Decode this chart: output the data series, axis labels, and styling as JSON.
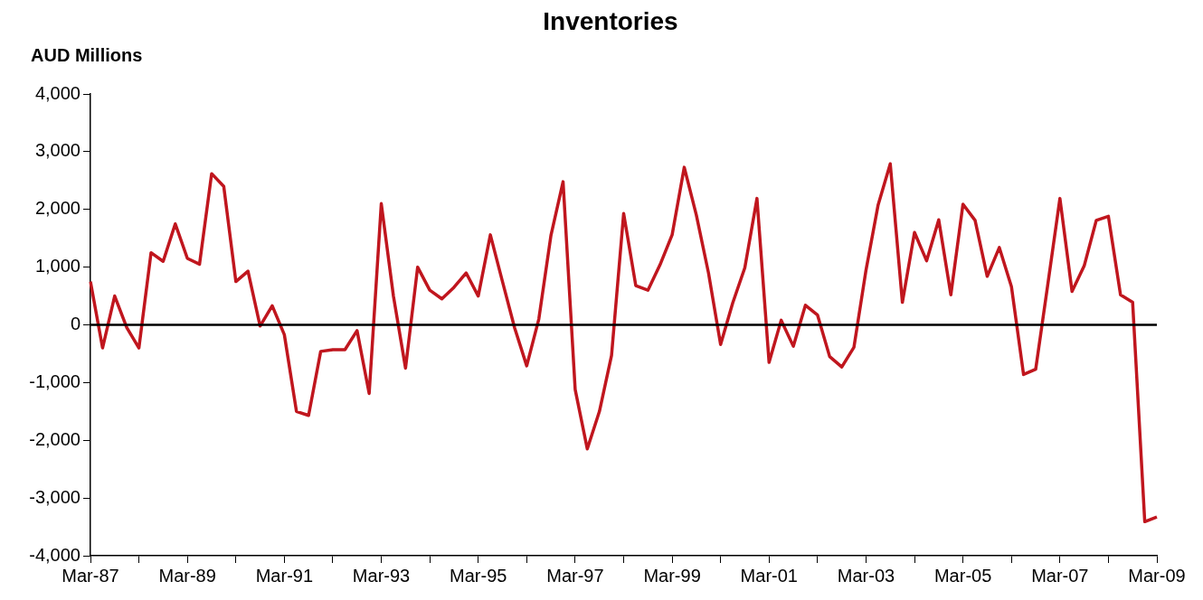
{
  "chart_data": {
    "type": "line",
    "title": "Inventories",
    "ylabel": "AUD Millions",
    "categories": [
      "Mar-87",
      null,
      null,
      null,
      null,
      null,
      null,
      null,
      "Mar-89",
      null,
      null,
      null,
      null,
      null,
      null,
      null,
      "Mar-91",
      null,
      null,
      null,
      null,
      null,
      null,
      null,
      "Mar-93",
      null,
      null,
      null,
      null,
      null,
      null,
      null,
      "Mar-95",
      null,
      null,
      null,
      null,
      null,
      null,
      null,
      "Mar-97",
      null,
      null,
      null,
      null,
      null,
      null,
      null,
      "Mar-99",
      null,
      null,
      null,
      null,
      null,
      null,
      null,
      "Mar-01",
      null,
      null,
      null,
      null,
      null,
      null,
      null,
      "Mar-03",
      null,
      null,
      null,
      null,
      null,
      null,
      null,
      "Mar-05",
      null,
      null,
      null,
      null,
      null,
      null,
      null,
      "Mar-07",
      null,
      null,
      null,
      null,
      null,
      null,
      null,
      "Mar-09"
    ],
    "series": [
      {
        "color": "#c0161e",
        "values": [
          750,
          -400,
          500,
          -50,
          -400,
          1250,
          1100,
          1750,
          1150,
          1050,
          2620,
          2400,
          750,
          930,
          -20,
          330,
          -170,
          -1500,
          -1570,
          -460,
          -430,
          -430,
          -100,
          -1190,
          2100,
          500,
          -750,
          1000,
          600,
          450,
          650,
          900,
          500,
          1560,
          750,
          -50,
          -710,
          100,
          1550,
          2480,
          -1120,
          -2150,
          -1500,
          -530,
          1930,
          680,
          600,
          1040,
          1560,
          2730,
          1900,
          900,
          -340,
          380,
          990,
          2190,
          -650,
          80,
          -370,
          340,
          170,
          -550,
          -730,
          -390,
          950,
          2080,
          2790,
          390,
          1600,
          1110,
          1820,
          520,
          2090,
          1810,
          840,
          1340,
          660,
          -860,
          -770,
          700,
          2190,
          580,
          1020,
          1810,
          1880,
          520,
          390,
          -3410,
          -3330
        ]
      }
    ],
    "ylim": [
      -4000,
      4000
    ],
    "yticks": [
      {
        "value": -4000,
        "label": "-4,000"
      },
      {
        "value": -3000,
        "label": "-3,000"
      },
      {
        "value": -2000,
        "label": "-2,000"
      },
      {
        "value": -1000,
        "label": "-1,000"
      },
      {
        "value": 0,
        "label": "0"
      },
      {
        "value": 1000,
        "label": "1,000"
      },
      {
        "value": 2000,
        "label": "2,000"
      },
      {
        "value": 3000,
        "label": "3,000"
      },
      {
        "value": 4000,
        "label": "4,000"
      }
    ],
    "ref_lines": [
      {
        "axis": "y",
        "value": 0,
        "color": "#000000"
      }
    ],
    "grid": false,
    "legend": false,
    "marker": "none",
    "line_style": "solid"
  }
}
